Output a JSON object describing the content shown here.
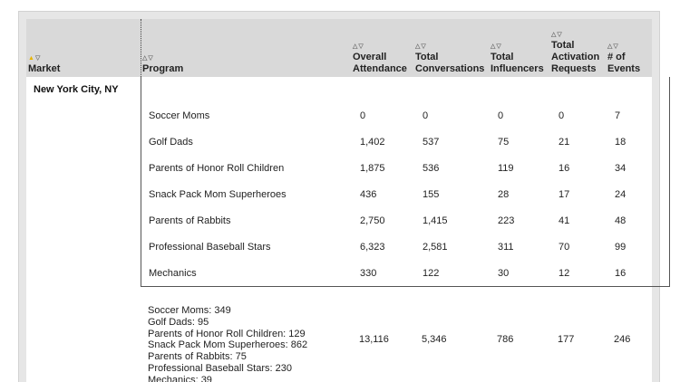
{
  "columns": [
    {
      "key": "market",
      "label_lines": [
        "Market"
      ],
      "sort_active": "up"
    },
    {
      "key": "program",
      "label_lines": [
        "Program"
      ],
      "sort_active": ""
    },
    {
      "key": "attendance",
      "label_lines": [
        "Overall",
        "Attendance"
      ],
      "sort_active": ""
    },
    {
      "key": "conversations",
      "label_lines": [
        "Total",
        "Conversations"
      ],
      "sort_active": ""
    },
    {
      "key": "influencers",
      "label_lines": [
        "Total",
        "Influencers"
      ],
      "sort_active": ""
    },
    {
      "key": "activation",
      "label_lines": [
        "Total",
        "Activation",
        "Requests"
      ],
      "sort_active": ""
    },
    {
      "key": "events",
      "label_lines": [
        "# of Events"
      ],
      "sort_active": ""
    }
  ],
  "market": "New York City, NY",
  "rows": [
    {
      "program": "Soccer Moms",
      "attendance": "0",
      "conversations": "0",
      "influencers": "0",
      "activation": "0",
      "events": "7"
    },
    {
      "program": "Golf Dads",
      "attendance": "1,402",
      "conversations": "537",
      "influencers": "75",
      "activation": "21",
      "events": "18"
    },
    {
      "program": "Parents of Honor Roll Children",
      "attendance": "1,875",
      "conversations": "536",
      "influencers": "119",
      "activation": "16",
      "events": "34"
    },
    {
      "program": "Snack Pack Mom Superheroes",
      "attendance": "436",
      "conversations": "155",
      "influencers": "28",
      "activation": "17",
      "events": "24"
    },
    {
      "program": "Parents of Rabbits",
      "attendance": "2,750",
      "conversations": "1,415",
      "influencers": "223",
      "activation": "41",
      "events": "48"
    },
    {
      "program": "Professional Baseball Stars",
      "attendance": "6,323",
      "conversations": "2,581",
      "influencers": "311",
      "activation": "70",
      "events": "99"
    },
    {
      "program": "Mechanics",
      "attendance": "330",
      "conversations": "122",
      "influencers": "30",
      "activation": "12",
      "events": "16"
    }
  ],
  "summary": {
    "programs": [
      "Soccer Moms: 349",
      "Golf Dads: 95",
      "Parents of Honor Roll Children: 129",
      "Snack Pack Mom Superheroes: 862",
      "Parents of Rabbits: 75",
      "Professional Baseball Stars: 230",
      "Mechanics: 39"
    ],
    "attendance": "13,116",
    "conversations": "5,346",
    "influencers": "786",
    "activation": "177",
    "events": "246"
  },
  "icons": {
    "sort": "sort-arrows-icon"
  },
  "colors": {
    "active_sort": "#e8b400",
    "header_bg": "#d9d9d9",
    "panel_bg": "#e6e6e6"
  }
}
